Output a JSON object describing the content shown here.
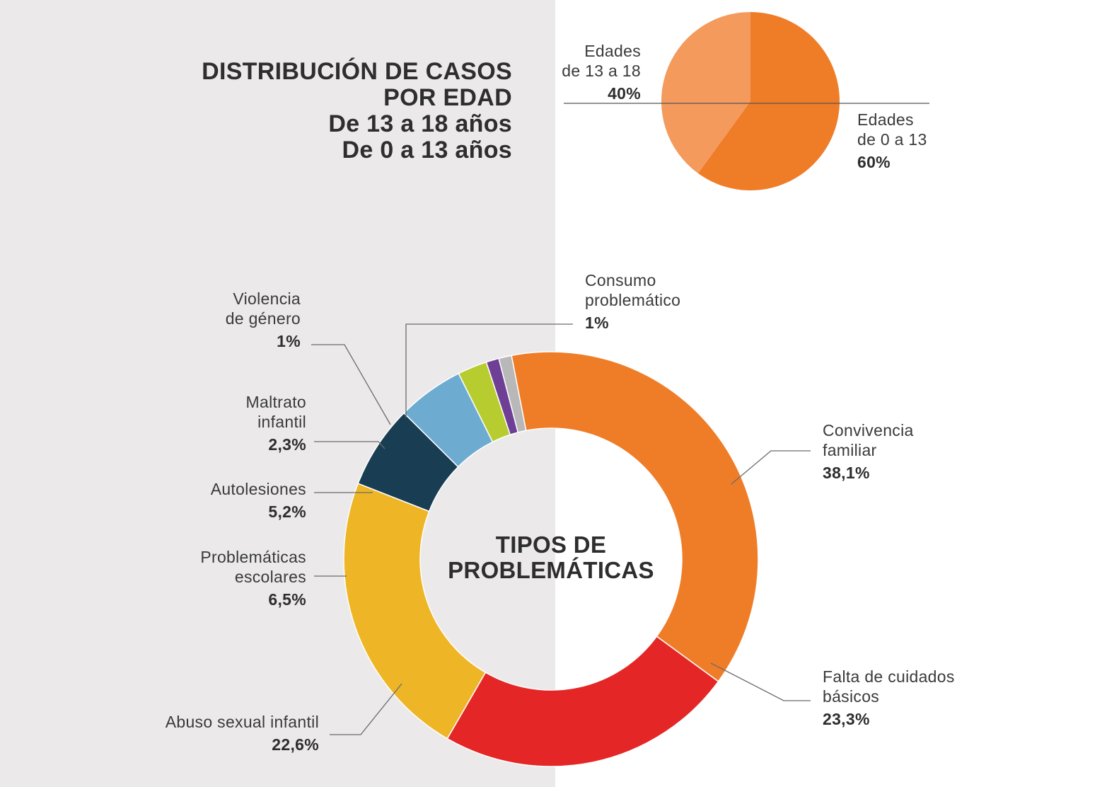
{
  "header": {
    "lines": [
      "DISTRIBUCIÓN DE CASOS",
      "POR EDAD",
      "De 13 a 18 años",
      "De 0 a 13 años"
    ]
  },
  "colors": {
    "age_13_18": "#f39a5c",
    "age_0_13": "#ef7d28",
    "convivencia_familiar": "#ef7d28",
    "falta_cuidados": "#e42726",
    "abuso_sexual": "#eeb627",
    "problematicas_escolares": "#193e53",
    "autolesiones": "#6eabd1",
    "maltrato_infantil": "#b6cc2f",
    "violencia_genero": "#6f3f96",
    "consumo": "#b8b8b8"
  },
  "chart_data": [
    {
      "type": "pie",
      "title": "DISTRIBUCIÓN DE CASOS POR EDAD",
      "slices": [
        {
          "label_lines": [
            "Edades",
            "de 13 a 18"
          ],
          "value": 40,
          "value_label": "40%"
        },
        {
          "label_lines": [
            "Edades",
            "de 0 a 13"
          ],
          "value": 60,
          "value_label": "60%"
        }
      ]
    },
    {
      "type": "pie",
      "variant": "donut",
      "title_lines": [
        "TIPOS DE",
        "PROBLEMÁTICAS"
      ],
      "slices": [
        {
          "label_lines": [
            "Convivencia",
            "familiar"
          ],
          "value": 38.1,
          "value_label": "38,1%"
        },
        {
          "label_lines": [
            "Falta de cuidados",
            "básicos"
          ],
          "value": 23.3,
          "value_label": "23,3%"
        },
        {
          "label_lines": [
            "Abuso sexual infantil"
          ],
          "value": 22.6,
          "value_label": "22,6%"
        },
        {
          "label_lines": [
            "Problemáticas",
            "escolares"
          ],
          "value": 6.5,
          "value_label": "6,5%"
        },
        {
          "label_lines": [
            "Autolesiones"
          ],
          "value": 5.2,
          "value_label": "5,2%"
        },
        {
          "label_lines": [
            "Maltrato",
            "infantil"
          ],
          "value": 2.3,
          "value_label": "2,3%"
        },
        {
          "label_lines": [
            "Violencia",
            "de género"
          ],
          "value": 1,
          "value_label": "1%"
        },
        {
          "label_lines": [
            "Consumo",
            "problemático"
          ],
          "value": 1,
          "value_label": "1%"
        }
      ]
    }
  ]
}
